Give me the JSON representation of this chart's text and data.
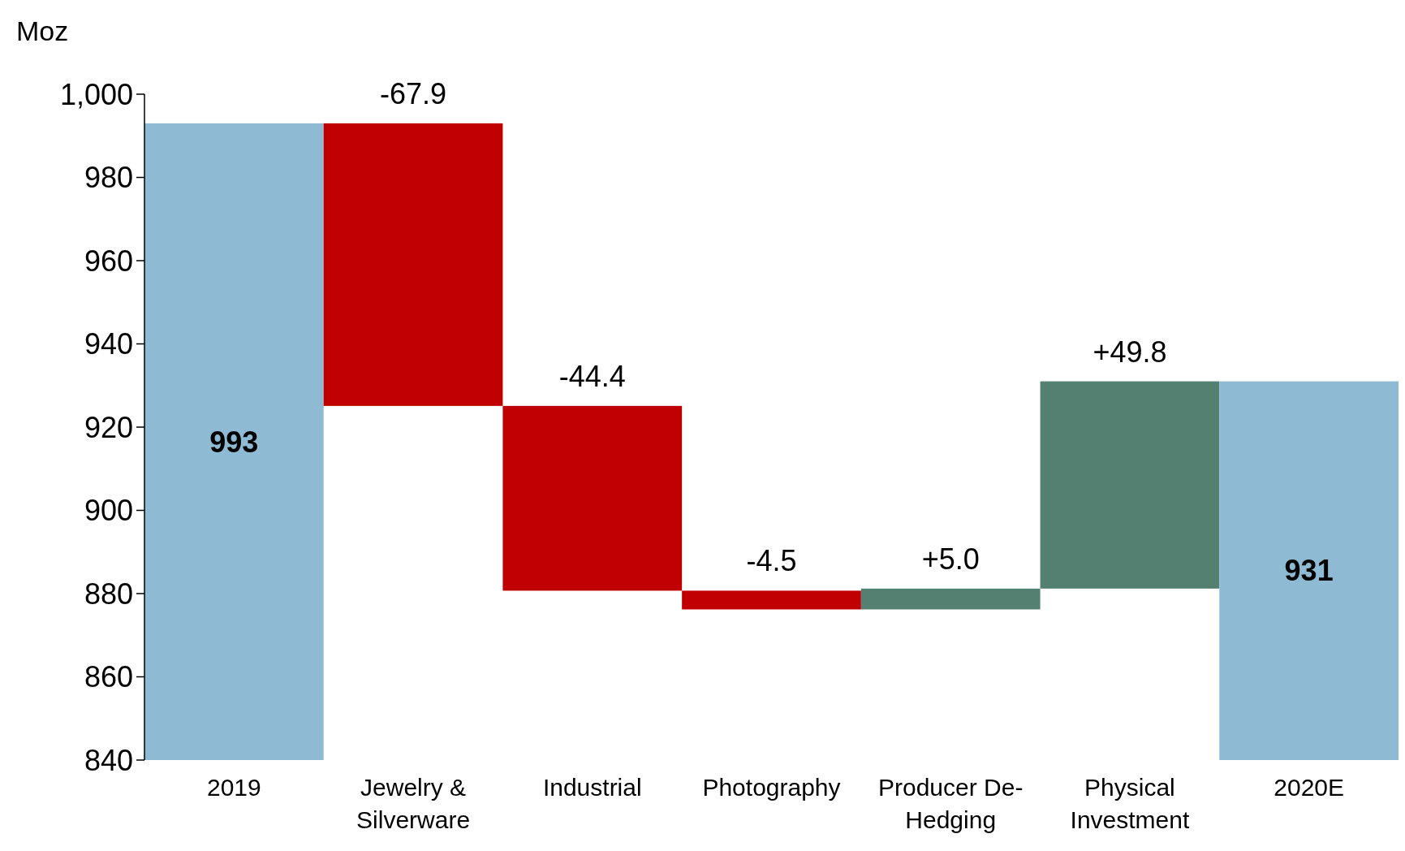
{
  "chart_data": {
    "type": "bar",
    "ylabel": "Moz",
    "categories": [
      "2019",
      "Jewelry & Silverware",
      "Industrial",
      "Photography",
      "Producer De-Hedging",
      "Physical Investment",
      "2020E"
    ],
    "values": [
      993,
      -67.9,
      -44.4,
      -4.5,
      5.0,
      49.8,
      931
    ],
    "base": [
      0,
      993,
      925.1,
      880.7,
      876.2,
      881.2,
      0
    ],
    "colors": [
      "#8fbad3",
      "#c00000",
      "#c00000",
      "#c00000",
      "#548072",
      "#548072",
      "#8fbad3"
    ],
    "value_labels": [
      "993",
      "-67.9",
      "-44.4",
      "-4.5",
      "+5.0",
      "+49.8",
      "931"
    ],
    "ylim": [
      840,
      1000
    ],
    "yticks": [
      840,
      860,
      880,
      900,
      920,
      940,
      960,
      980,
      {
        "value": 1000,
        "label": "1,000"
      }
    ],
    "grid": false
  }
}
